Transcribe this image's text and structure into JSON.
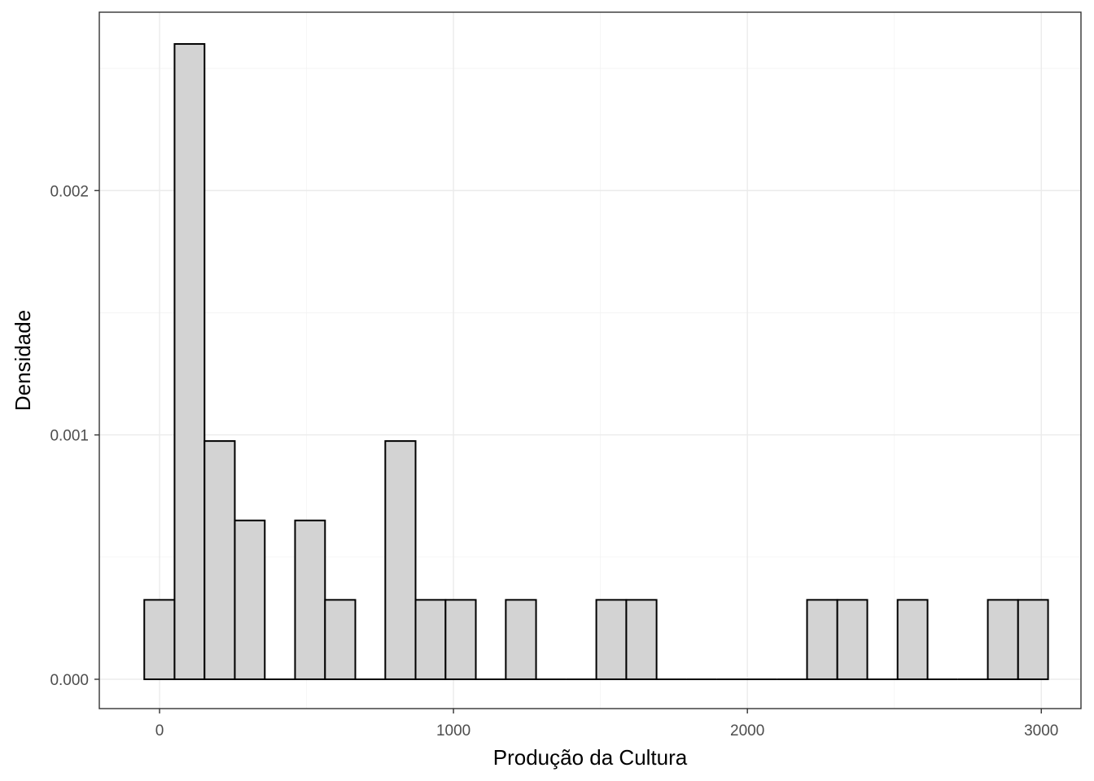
{
  "chart_data": {
    "type": "bar",
    "subtype": "histogram",
    "xlabel": "Produção da Cultura",
    "ylabel": "Densidade",
    "xlim": [
      -205,
      3135
    ],
    "ylim": [
      -0.00012,
      0.00273
    ],
    "x_ticks": [
      0,
      1000,
      2000,
      3000
    ],
    "x_tick_labels": [
      "0",
      "1000",
      "2000",
      "3000"
    ],
    "y_ticks": [
      0.0,
      0.001,
      0.002
    ],
    "y_tick_labels": [
      "0.000",
      "0.001",
      "0.002"
    ],
    "bin_width": 102.5,
    "bins": [
      {
        "x0": -52,
        "x1": 51,
        "density": 0.000325
      },
      {
        "x0": 51,
        "x1": 153,
        "density": 0.0026
      },
      {
        "x0": 153,
        "x1": 256,
        "density": 0.000975
      },
      {
        "x0": 256,
        "x1": 358,
        "density": 0.00065
      },
      {
        "x0": 358,
        "x1": 461,
        "density": 0
      },
      {
        "x0": 461,
        "x1": 563,
        "density": 0.00065
      },
      {
        "x0": 563,
        "x1": 666,
        "density": 0.000325
      },
      {
        "x0": 666,
        "x1": 768,
        "density": 0
      },
      {
        "x0": 768,
        "x1": 871,
        "density": 0.000975
      },
      {
        "x0": 871,
        "x1": 973,
        "density": 0.000325
      },
      {
        "x0": 973,
        "x1": 1076,
        "density": 0.000325
      },
      {
        "x0": 1076,
        "x1": 1178,
        "density": 0
      },
      {
        "x0": 1178,
        "x1": 1281,
        "density": 0.000325
      },
      {
        "x0": 1281,
        "x1": 1383,
        "density": 0
      },
      {
        "x0": 1383,
        "x1": 1486,
        "density": 0
      },
      {
        "x0": 1486,
        "x1": 1588,
        "density": 0.000325
      },
      {
        "x0": 1588,
        "x1": 1691,
        "density": 0.000325
      },
      {
        "x0": 1691,
        "x1": 1793,
        "density": 0
      },
      {
        "x0": 1793,
        "x1": 1896,
        "density": 0
      },
      {
        "x0": 1896,
        "x1": 1998,
        "density": 0
      },
      {
        "x0": 1998,
        "x1": 2101,
        "density": 0
      },
      {
        "x0": 2101,
        "x1": 2203,
        "density": 0
      },
      {
        "x0": 2203,
        "x1": 2306,
        "density": 0.000325
      },
      {
        "x0": 2306,
        "x1": 2408,
        "density": 0.000325
      },
      {
        "x0": 2408,
        "x1": 2511,
        "density": 0
      },
      {
        "x0": 2511,
        "x1": 2613,
        "density": 0.000325
      },
      {
        "x0": 2613,
        "x1": 2716,
        "density": 0
      },
      {
        "x0": 2716,
        "x1": 2818,
        "density": 0
      },
      {
        "x0": 2818,
        "x1": 2921,
        "density": 0.000325
      },
      {
        "x0": 2921,
        "x1": 3023,
        "density": 0.000325
      }
    ],
    "grid": true,
    "fill_color": "#d3d3d3",
    "outline_color": "#000000",
    "legend": "none"
  }
}
